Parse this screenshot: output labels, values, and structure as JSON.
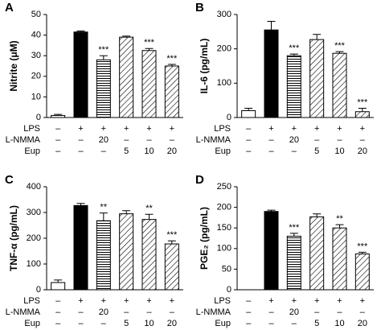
{
  "chart_data": [
    {
      "type": "bar",
      "panel": "A",
      "ylabel": "Nitrite (μM)",
      "ylim": [
        0,
        50
      ],
      "yticks": [
        0,
        10,
        20,
        30,
        40,
        50
      ],
      "values": [
        1,
        41.5,
        28,
        39,
        32.5,
        25
      ],
      "errors": [
        0.5,
        0.5,
        2,
        0.5,
        1,
        0.8
      ],
      "significance": [
        null,
        null,
        "***",
        null,
        "***",
        "***"
      ],
      "bar_styles": [
        "white",
        "black",
        "hstripe",
        "diag",
        "diag",
        "diag"
      ],
      "conditions": [
        {
          "name": "LPS",
          "values": [
            "–",
            "+",
            "+",
            "+",
            "+",
            "+"
          ]
        },
        {
          "name": "L-NMMA",
          "values": [
            "–",
            "–",
            "20",
            "–",
            "–",
            "–"
          ]
        },
        {
          "name": "Eup",
          "values": [
            "–",
            "–",
            "–",
            "5",
            "10",
            "20"
          ]
        }
      ]
    },
    {
      "type": "bar",
      "panel": "B",
      "ylabel": "IL-6 (pg/mL)",
      "ylim": [
        0,
        300
      ],
      "yticks": [
        0,
        100,
        200,
        300
      ],
      "values": [
        20,
        255,
        180,
        227,
        187,
        17
      ],
      "errors": [
        7,
        25,
        5,
        15,
        5,
        10
      ],
      "significance": [
        null,
        null,
        "***",
        null,
        "***",
        "***"
      ],
      "bar_styles": [
        "white",
        "black",
        "hstripe",
        "diag",
        "diag",
        "diag"
      ],
      "conditions": [
        {
          "name": "LPS",
          "values": [
            "–",
            "+",
            "+",
            "+",
            "+",
            "+"
          ]
        },
        {
          "name": "L-NMMA",
          "values": [
            "–",
            "–",
            "20",
            "–",
            "–",
            "–"
          ]
        },
        {
          "name": "Eup",
          "values": [
            "–",
            "–",
            "–",
            "5",
            "10",
            "20"
          ]
        }
      ]
    },
    {
      "type": "bar",
      "panel": "C",
      "ylabel": "TNF-α (pg/mL)",
      "ylim": [
        0,
        400
      ],
      "yticks": [
        0,
        100,
        200,
        300,
        400
      ],
      "values": [
        28,
        327,
        268,
        295,
        273,
        178
      ],
      "errors": [
        10,
        8,
        30,
        12,
        20,
        12
      ],
      "significance": [
        null,
        null,
        "**",
        null,
        "**",
        "***"
      ],
      "bar_styles": [
        "white",
        "black",
        "hstripe",
        "diag",
        "diag",
        "diag"
      ],
      "conditions": [
        {
          "name": "LPS",
          "values": [
            "–",
            "+",
            "+",
            "+",
            "+",
            "+"
          ]
        },
        {
          "name": "L-NMMA",
          "values": [
            "–",
            "–",
            "20",
            "–",
            "–",
            "–"
          ]
        },
        {
          "name": "Eup",
          "values": [
            "–",
            "–",
            "–",
            "5",
            "10",
            "20"
          ]
        }
      ]
    },
    {
      "type": "bar",
      "panel": "D",
      "ylabel": "PGE₂ (pg/mL)",
      "ylim": [
        0,
        250
      ],
      "yticks": [
        0,
        50,
        100,
        150,
        200,
        250
      ],
      "values": [
        0,
        190,
        130,
        177,
        150,
        87
      ],
      "errors": [
        0,
        3,
        7,
        7,
        8,
        4
      ],
      "significance": [
        null,
        null,
        "***",
        null,
        "**",
        "***"
      ],
      "bar_styles": [
        "white",
        "black",
        "hstripe",
        "diag",
        "diag",
        "diag"
      ],
      "conditions": [
        {
          "name": "LPS",
          "values": [
            "–",
            "+",
            "+",
            "+",
            "+",
            "+"
          ]
        },
        {
          "name": "L-NMMA",
          "values": [
            "–",
            "–",
            "20",
            "–",
            "–",
            "–"
          ]
        },
        {
          "name": "Eup",
          "values": [
            "–",
            "–",
            "–",
            "5",
            "10",
            "20"
          ]
        }
      ]
    }
  ]
}
